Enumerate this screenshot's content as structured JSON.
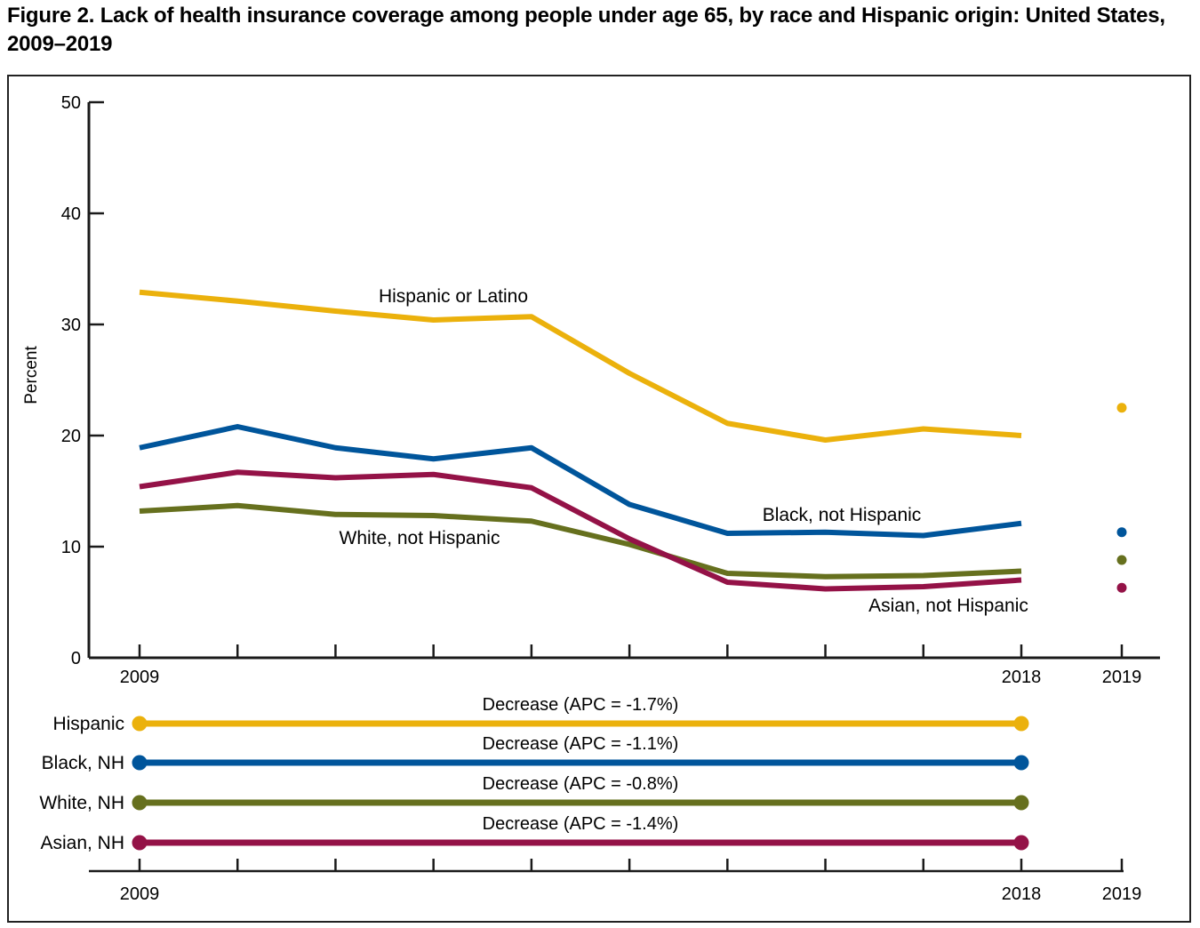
{
  "title": "Figure 2. Lack of health insurance coverage among people under age 65, by race and Hispanic origin: United States, 2009–2019",
  "chart_data": {
    "type": "line",
    "title": "Lack of health insurance coverage among people under age 65, by race and Hispanic origin: United States, 2009–2019",
    "ylabel": "Percent",
    "ylim": [
      0,
      50
    ],
    "yticks": [
      0,
      10,
      20,
      30,
      40,
      50
    ],
    "x_years": [
      2009,
      2010,
      2011,
      2012,
      2013,
      2014,
      2015,
      2016,
      2017,
      2018
    ],
    "xtick_labels_shown": [
      "2009",
      "2018",
      "2019"
    ],
    "separate_point_year": 2019,
    "legend_position": "bottom",
    "grid": false,
    "series": [
      {
        "name": "Hispanic or Latino",
        "legend_label": "Hispanic",
        "apc_label": "Decrease (APC = -1.7%)",
        "color": "#EBB10C",
        "values": [
          32.9,
          32.1,
          31.2,
          30.4,
          30.7,
          25.6,
          21.1,
          19.6,
          20.6,
          20.0
        ],
        "value_2019": 22.5
      },
      {
        "name": "Black, not Hispanic",
        "legend_label": "Black, NH",
        "apc_label": "Decrease (APC = -1.1%)",
        "color": "#00559B",
        "values": [
          18.9,
          20.8,
          18.9,
          17.9,
          18.9,
          13.8,
          11.2,
          11.3,
          11.0,
          12.1
        ],
        "value_2019": 11.3
      },
      {
        "name": "White, not Hispanic",
        "legend_label": "White, NH",
        "apc_label": "Decrease (APC = -0.8%)",
        "color": "#66701E",
        "values": [
          13.2,
          13.7,
          12.9,
          12.8,
          12.3,
          10.2,
          7.6,
          7.3,
          7.4,
          7.8
        ],
        "value_2019": 8.8
      },
      {
        "name": "Asian, not Hispanic",
        "legend_label": "Asian, NH",
        "apc_label": "Decrease (APC = -1.4%)",
        "color": "#941247",
        "values": [
          15.4,
          16.7,
          16.2,
          16.5,
          15.3,
          10.7,
          6.8,
          6.2,
          6.4,
          7.0
        ],
        "value_2019": 6.3
      }
    ]
  }
}
